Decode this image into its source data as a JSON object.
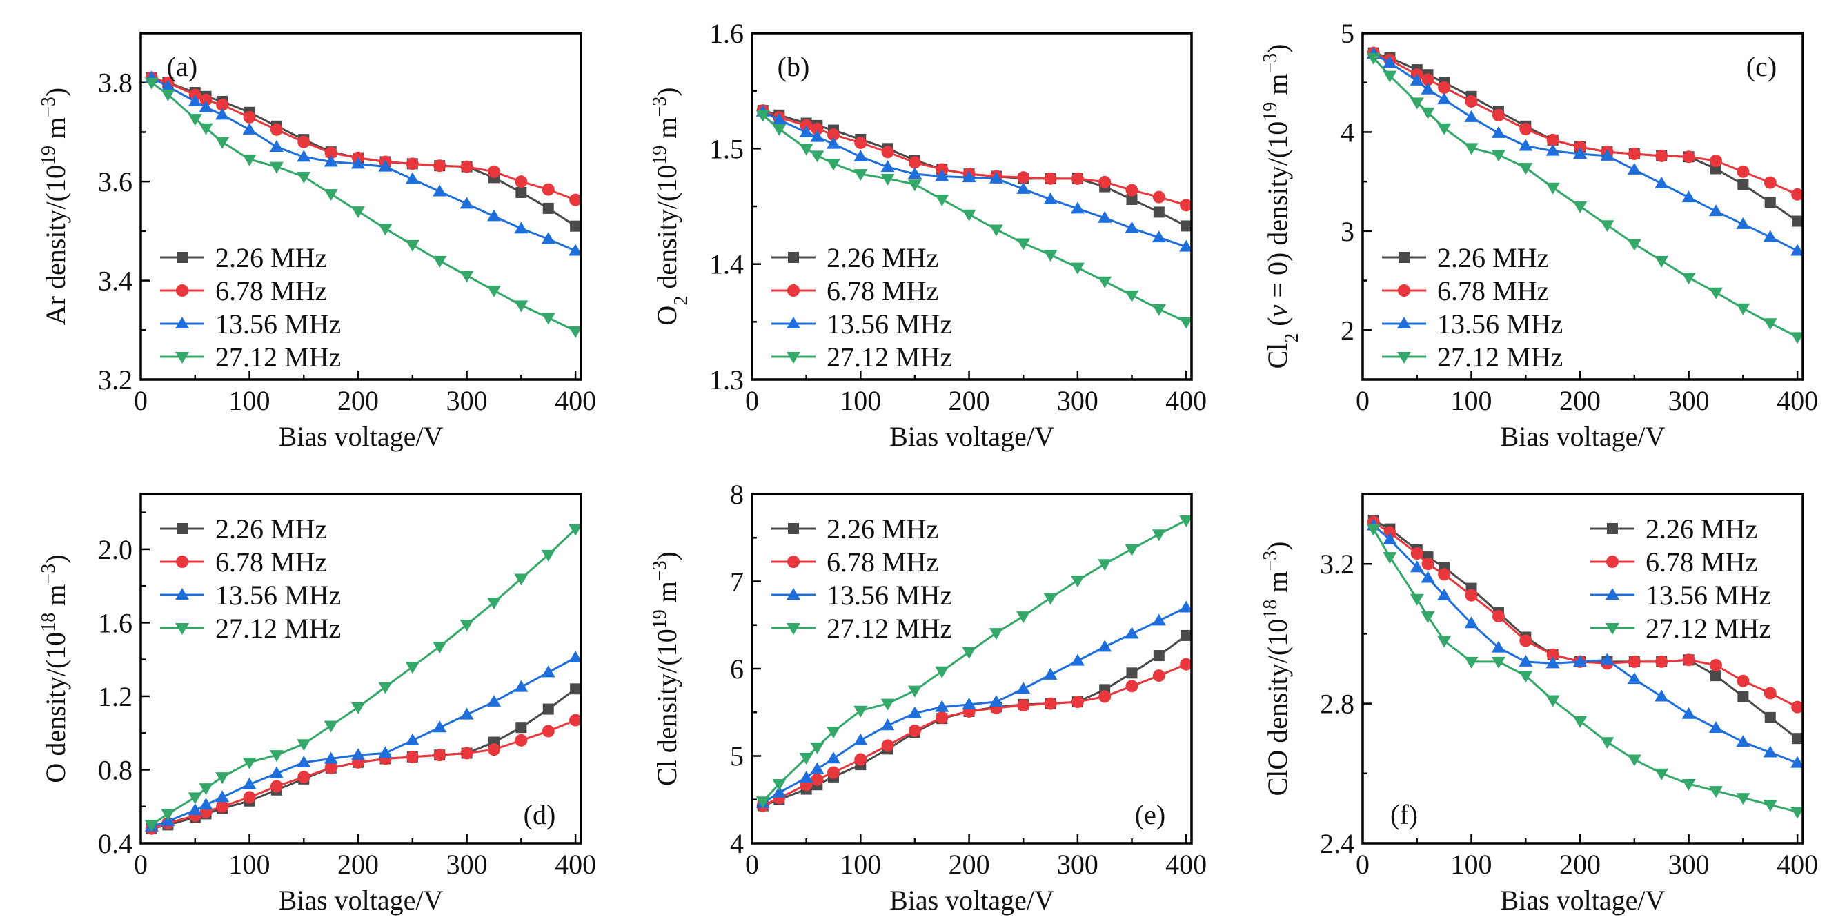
{
  "colors": {
    "2.26 MHz": "#4a4a4a",
    "6.78 MHz": "#e8383d",
    "13.56 MHz": "#1e6fdc",
    "27.12 MHz": "#33a868"
  },
  "chart_data": [
    {
      "type": "line",
      "tag": "(a)",
      "xlabel": "Bias voltage/V",
      "ylabel": [
        {
          "t": "Ar density/(10"
        },
        {
          "t": "19",
          "s": "sup"
        },
        {
          "t": " m"
        },
        {
          "t": "−3",
          "s": "sup"
        },
        {
          "t": ")"
        }
      ],
      "xlim": [
        0,
        405
      ],
      "ylim": [
        3.2,
        3.9
      ],
      "xticks": [
        0,
        100,
        200,
        300,
        400
      ],
      "xminor": 50,
      "yticks": [
        "3.2",
        "3.4",
        "3.6",
        "3.8"
      ],
      "yminor": 0.1,
      "legend": "bottom-left",
      "tag_pos": "top-left",
      "x": [
        10,
        25,
        50,
        60,
        75,
        100,
        125,
        150,
        175,
        200,
        225,
        250,
        275,
        300,
        325,
        350,
        375,
        400
      ],
      "series": [
        {
          "name": "2.26 MHz",
          "marker": "square",
          "values": [
            3.81,
            3.8,
            3.78,
            3.772,
            3.762,
            3.74,
            3.712,
            3.685,
            3.66,
            3.648,
            3.64,
            3.636,
            3.632,
            3.63,
            3.608,
            3.578,
            3.546,
            3.51
          ]
        },
        {
          "name": "6.78 MHz",
          "marker": "circle",
          "values": [
            3.81,
            3.8,
            3.775,
            3.765,
            3.755,
            3.73,
            3.705,
            3.68,
            3.658,
            3.648,
            3.64,
            3.636,
            3.632,
            3.63,
            3.62,
            3.6,
            3.584,
            3.563
          ]
        },
        {
          "name": "13.56 MHz",
          "marker": "triangle-up",
          "values": [
            3.81,
            3.792,
            3.762,
            3.75,
            3.735,
            3.705,
            3.67,
            3.65,
            3.64,
            3.636,
            3.63,
            3.605,
            3.58,
            3.555,
            3.53,
            3.505,
            3.484,
            3.46
          ]
        },
        {
          "name": "27.12 MHz",
          "marker": "triangle-down",
          "values": [
            3.8,
            3.776,
            3.727,
            3.708,
            3.68,
            3.645,
            3.63,
            3.61,
            3.575,
            3.54,
            3.505,
            3.472,
            3.44,
            3.41,
            3.38,
            3.35,
            3.325,
            3.298
          ]
        }
      ]
    },
    {
      "type": "line",
      "tag": "(b)",
      "xlabel": "Bias voltage/V",
      "ylabel": [
        {
          "t": "O"
        },
        {
          "t": "2",
          "s": "sub"
        },
        {
          "t": " density/(10"
        },
        {
          "t": "19",
          "s": "sup"
        },
        {
          "t": " m"
        },
        {
          "t": "−3",
          "s": "sup"
        },
        {
          "t": ")"
        }
      ],
      "xlim": [
        0,
        405
      ],
      "ylim": [
        1.3,
        1.6
      ],
      "xticks": [
        0,
        100,
        200,
        300,
        400
      ],
      "xminor": 50,
      "yticks": [
        "1.3",
        "1.4",
        "1.5",
        "1.6"
      ],
      "yminor": 0.05,
      "legend": "bottom-left",
      "tag_pos": "top-left",
      "x": [
        10,
        25,
        50,
        60,
        75,
        100,
        125,
        150,
        175,
        200,
        225,
        250,
        275,
        300,
        325,
        350,
        375,
        400
      ],
      "series": [
        {
          "name": "2.26 MHz",
          "marker": "square",
          "values": [
            1.533,
            1.529,
            1.522,
            1.52,
            1.516,
            1.508,
            1.5,
            1.49,
            1.482,
            1.478,
            1.476,
            1.474,
            1.474,
            1.474,
            1.467,
            1.456,
            1.445,
            1.433
          ]
        },
        {
          "name": "6.78 MHz",
          "marker": "circle",
          "values": [
            1.533,
            1.527,
            1.52,
            1.517,
            1.512,
            1.505,
            1.497,
            1.488,
            1.482,
            1.478,
            1.476,
            1.475,
            1.474,
            1.474,
            1.471,
            1.464,
            1.458,
            1.451
          ]
        },
        {
          "name": "13.56 MHz",
          "marker": "triangle-up",
          "values": [
            1.532,
            1.525,
            1.514,
            1.51,
            1.504,
            1.493,
            1.484,
            1.478,
            1.476,
            1.475,
            1.474,
            1.465,
            1.456,
            1.448,
            1.44,
            1.431,
            1.423,
            1.415
          ]
        },
        {
          "name": "27.12 MHz",
          "marker": "triangle-down",
          "values": [
            1.529,
            1.517,
            1.5,
            1.494,
            1.487,
            1.478,
            1.474,
            1.469,
            1.456,
            1.443,
            1.43,
            1.418,
            1.408,
            1.397,
            1.385,
            1.373,
            1.361,
            1.35
          ]
        }
      ]
    },
    {
      "type": "line",
      "tag": "(c)",
      "xlabel": "Bias voltage/V",
      "ylabel": [
        {
          "t": "Cl"
        },
        {
          "t": "2",
          "s": "sub"
        },
        {
          "t": " ("
        },
        {
          "t": "v",
          "s": "it"
        },
        {
          "t": " = 0) density/(10"
        },
        {
          "t": "19",
          "s": "sup"
        },
        {
          "t": " m"
        },
        {
          "t": "−3",
          "s": "sup"
        },
        {
          "t": ")"
        }
      ],
      "xlim": [
        0,
        405
      ],
      "ylim": [
        1.5,
        5
      ],
      "xticks": [
        0,
        100,
        200,
        300,
        400
      ],
      "xminor": 50,
      "yticks": [
        "2",
        "3",
        "4",
        "5"
      ],
      "yminor": 0.5,
      "legend": "bottom-left",
      "tag_pos": "top-right",
      "x": [
        10,
        25,
        50,
        60,
        75,
        100,
        125,
        150,
        175,
        200,
        225,
        250,
        275,
        300,
        325,
        350,
        375,
        400
      ],
      "series": [
        {
          "name": "2.26 MHz",
          "marker": "square",
          "values": [
            4.8,
            4.75,
            4.63,
            4.58,
            4.5,
            4.36,
            4.21,
            4.06,
            3.92,
            3.85,
            3.8,
            3.78,
            3.76,
            3.75,
            3.63,
            3.47,
            3.29,
            3.1
          ]
        },
        {
          "name": "6.78 MHz",
          "marker": "circle",
          "values": [
            4.8,
            4.73,
            4.58,
            4.53,
            4.45,
            4.31,
            4.17,
            4.03,
            3.92,
            3.85,
            3.8,
            3.78,
            3.76,
            3.75,
            3.71,
            3.6,
            3.49,
            3.37
          ]
        },
        {
          "name": "13.56 MHz",
          "marker": "triangle-up",
          "values": [
            4.79,
            4.7,
            4.52,
            4.43,
            4.33,
            4.15,
            3.99,
            3.86,
            3.81,
            3.78,
            3.76,
            3.62,
            3.48,
            3.34,
            3.2,
            3.07,
            2.94,
            2.8
          ]
        },
        {
          "name": "27.12 MHz",
          "marker": "triangle-down",
          "values": [
            4.75,
            4.57,
            4.3,
            4.2,
            4.04,
            3.84,
            3.77,
            3.64,
            3.44,
            3.25,
            3.06,
            2.87,
            2.7,
            2.53,
            2.38,
            2.22,
            2.07,
            1.93
          ]
        }
      ]
    },
    {
      "type": "line",
      "tag": "(d)",
      "xlabel": "Bias voltage/V",
      "ylabel": [
        {
          "t": "O density/(10"
        },
        {
          "t": "18",
          "s": "sup"
        },
        {
          "t": " m"
        },
        {
          "t": "−3",
          "s": "sup"
        },
        {
          "t": ")"
        }
      ],
      "xlim": [
        0,
        405
      ],
      "ylim": [
        0.4,
        2.3
      ],
      "xticks": [
        0,
        100,
        200,
        300,
        400
      ],
      "xminor": 50,
      "yticks": [
        "0.4",
        "0.8",
        "1.2",
        "1.6",
        "2.0"
      ],
      "yminor": 0.2,
      "legend": "top-left",
      "tag_pos": "bottom-right",
      "x": [
        10,
        25,
        50,
        60,
        75,
        100,
        125,
        150,
        175,
        200,
        225,
        250,
        275,
        300,
        325,
        350,
        375,
        400
      ],
      "series": [
        {
          "name": "2.26 MHz",
          "marker": "square",
          "values": [
            0.48,
            0.5,
            0.54,
            0.56,
            0.59,
            0.63,
            0.69,
            0.75,
            0.81,
            0.84,
            0.86,
            0.87,
            0.88,
            0.89,
            0.95,
            1.03,
            1.13,
            1.24
          ]
        },
        {
          "name": "6.78 MHz",
          "marker": "circle",
          "values": [
            0.48,
            0.51,
            0.55,
            0.57,
            0.6,
            0.65,
            0.71,
            0.76,
            0.81,
            0.84,
            0.86,
            0.87,
            0.88,
            0.89,
            0.91,
            0.96,
            1.01,
            1.07
          ]
        },
        {
          "name": "13.56 MHz",
          "marker": "triangle-up",
          "values": [
            0.49,
            0.52,
            0.58,
            0.61,
            0.65,
            0.72,
            0.78,
            0.84,
            0.86,
            0.88,
            0.89,
            0.96,
            1.03,
            1.1,
            1.17,
            1.25,
            1.33,
            1.41
          ]
        },
        {
          "name": "27.12 MHz",
          "marker": "triangle-down",
          "values": [
            0.5,
            0.56,
            0.65,
            0.7,
            0.76,
            0.84,
            0.88,
            0.94,
            1.04,
            1.14,
            1.25,
            1.36,
            1.47,
            1.59,
            1.71,
            1.84,
            1.97,
            2.11
          ]
        }
      ]
    },
    {
      "type": "line",
      "tag": "(e)",
      "xlabel": "Bias voltage/V",
      "ylabel": [
        {
          "t": "Cl density/(10"
        },
        {
          "t": "19",
          "s": "sup"
        },
        {
          "t": " m"
        },
        {
          "t": "−3",
          "s": "sup"
        },
        {
          "t": ")"
        }
      ],
      "xlim": [
        0,
        405
      ],
      "ylim": [
        4,
        8
      ],
      "xticks": [
        0,
        100,
        200,
        300,
        400
      ],
      "xminor": 50,
      "yticks": [
        "4",
        "5",
        "6",
        "7",
        "8"
      ],
      "yminor": 0.5,
      "legend": "top-left",
      "tag_pos": "bottom-right",
      "x": [
        10,
        25,
        50,
        60,
        75,
        100,
        125,
        150,
        175,
        200,
        225,
        250,
        275,
        300,
        325,
        350,
        375,
        400
      ],
      "series": [
        {
          "name": "2.26 MHz",
          "marker": "square",
          "values": [
            4.43,
            4.5,
            4.62,
            4.67,
            4.76,
            4.9,
            5.08,
            5.27,
            5.43,
            5.51,
            5.56,
            5.59,
            5.6,
            5.62,
            5.76,
            5.95,
            6.15,
            6.38
          ]
        },
        {
          "name": "6.78 MHz",
          "marker": "circle",
          "values": [
            4.43,
            4.52,
            4.67,
            4.73,
            4.81,
            4.96,
            5.12,
            5.29,
            5.44,
            5.51,
            5.55,
            5.58,
            5.6,
            5.62,
            5.68,
            5.8,
            5.92,
            6.05
          ]
        },
        {
          "name": "13.56 MHz",
          "marker": "triangle-up",
          "values": [
            4.46,
            4.58,
            4.75,
            4.85,
            4.97,
            5.18,
            5.35,
            5.49,
            5.56,
            5.59,
            5.62,
            5.77,
            5.93,
            6.09,
            6.25,
            6.4,
            6.55,
            6.7
          ]
        },
        {
          "name": "27.12 MHz",
          "marker": "triangle-down",
          "values": [
            4.48,
            4.68,
            4.98,
            5.1,
            5.28,
            5.52,
            5.6,
            5.75,
            5.97,
            6.19,
            6.41,
            6.6,
            6.81,
            7.01,
            7.2,
            7.37,
            7.54,
            7.7
          ]
        }
      ]
    },
    {
      "type": "line",
      "tag": "(f)",
      "xlabel": "Bias voltage/V",
      "ylabel": [
        {
          "t": "ClO density/(10"
        },
        {
          "t": "18",
          "s": "sup"
        },
        {
          "t": " m"
        },
        {
          "t": "−3",
          "s": "sup"
        },
        {
          "t": ")"
        }
      ],
      "xlim": [
        0,
        405
      ],
      "ylim": [
        2.4,
        3.4
      ],
      "xticks": [
        0,
        100,
        200,
        300,
        400
      ],
      "xminor": 50,
      "yticks": [
        "2.4",
        "2.8",
        "3.2"
      ],
      "yminor": 0.2,
      "legend": "top-right",
      "tag_pos": "bottom-left",
      "x": [
        10,
        25,
        50,
        60,
        75,
        100,
        125,
        150,
        175,
        200,
        225,
        250,
        275,
        300,
        325,
        350,
        375,
        400
      ],
      "series": [
        {
          "name": "2.26 MHz",
          "marker": "square",
          "values": [
            3.325,
            3.3,
            3.24,
            3.22,
            3.19,
            3.13,
            3.06,
            2.99,
            2.94,
            2.92,
            2.92,
            2.92,
            2.92,
            2.925,
            2.88,
            2.82,
            2.76,
            2.7
          ]
        },
        {
          "name": "6.78 MHz",
          "marker": "circle",
          "values": [
            3.32,
            3.29,
            3.23,
            3.2,
            3.17,
            3.11,
            3.05,
            2.98,
            2.94,
            2.92,
            2.915,
            2.92,
            2.92,
            2.925,
            2.91,
            2.865,
            2.83,
            2.79
          ]
        },
        {
          "name": "13.56 MHz",
          "marker": "triangle-up",
          "values": [
            3.31,
            3.27,
            3.19,
            3.16,
            3.11,
            3.03,
            2.96,
            2.92,
            2.915,
            2.92,
            2.925,
            2.87,
            2.82,
            2.77,
            2.73,
            2.69,
            2.66,
            2.63
          ]
        },
        {
          "name": "27.12 MHz",
          "marker": "triangle-down",
          "values": [
            3.3,
            3.22,
            3.1,
            3.05,
            2.98,
            2.92,
            2.92,
            2.88,
            2.81,
            2.75,
            2.69,
            2.64,
            2.6,
            2.57,
            2.55,
            2.53,
            2.51,
            2.49
          ]
        }
      ]
    }
  ]
}
